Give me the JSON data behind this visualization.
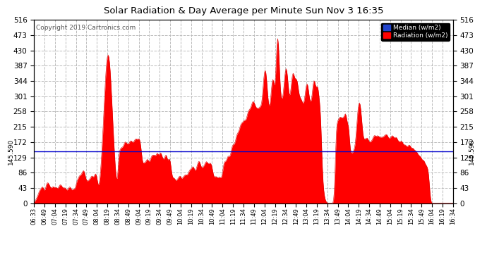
{
  "title": "Solar Radiation & Day Average per Minute Sun Nov 3 16:35",
  "copyright": "Copyright 2019 Cartronics.com",
  "median_value": 145.59,
  "median_label": "145.590",
  "legend_median": "Median (w/m2)",
  "legend_radiation": "Radiation (w/m2)",
  "yticks": [
    0.0,
    43.0,
    86.0,
    129.0,
    172.0,
    215.0,
    258.0,
    301.0,
    344.0,
    387.0,
    430.0,
    473.0,
    516.0
  ],
  "ylim": [
    0,
    516.0
  ],
  "background_color": "#ffffff",
  "fill_color": "#ff0000",
  "line_color": "#dd0000",
  "median_line_color": "#0000cc",
  "grid_color": "#bbbbbb",
  "title_color": "#000000",
  "xtick_labels": [
    "06:33",
    "06:49",
    "07:04",
    "07:19",
    "07:34",
    "07:49",
    "08:04",
    "08:19",
    "08:34",
    "08:49",
    "09:04",
    "09:19",
    "09:34",
    "09:49",
    "10:04",
    "10:19",
    "10:34",
    "10:49",
    "11:04",
    "11:19",
    "11:34",
    "11:49",
    "12:04",
    "12:19",
    "12:34",
    "12:49",
    "13:04",
    "13:19",
    "13:34",
    "13:49",
    "14:04",
    "14:19",
    "14:34",
    "14:49",
    "15:04",
    "15:19",
    "15:34",
    "15:49",
    "16:04",
    "16:19",
    "16:34"
  ]
}
